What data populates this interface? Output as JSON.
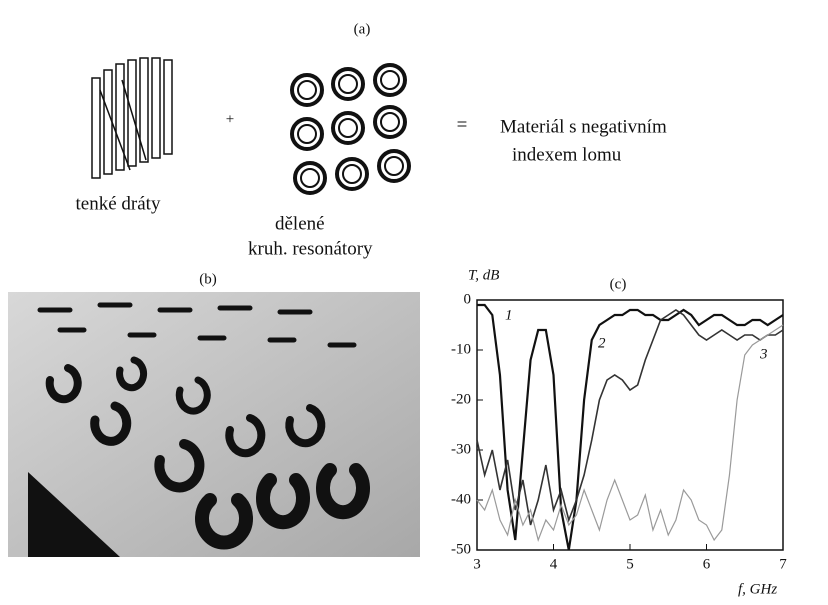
{
  "figure": {
    "panel_a_label": "(a)",
    "wires_label": "tenké dráty",
    "plus": "+",
    "resonators_label": [
      "dělené",
      "kruh. resonátory"
    ],
    "equals": "=",
    "result_label": [
      "Materiál  s negativním",
      "indexem lomu"
    ],
    "panel_b_label": "(b)"
  },
  "chart_data": {
    "type": "line",
    "title": "(c)",
    "y_label": "T, dB",
    "x_label": "f, GHz",
    "x": [
      3,
      3.1,
      3.2,
      3.3,
      3.4,
      3.5,
      3.6,
      3.7,
      3.8,
      3.9,
      4,
      4.1,
      4.2,
      4.3,
      4.4,
      4.5,
      4.6,
      4.7,
      4.8,
      4.9,
      5,
      5.1,
      5.2,
      5.3,
      5.4,
      5.5,
      5.6,
      5.7,
      5.8,
      5.9,
      6,
      6.1,
      6.2,
      6.3,
      6.4,
      6.5,
      6.6,
      6.7,
      6.8,
      6.9,
      7
    ],
    "series": [
      {
        "name": "1",
        "color": "#111111",
        "values": [
          -1,
          -1,
          -3,
          -15,
          -38,
          -48,
          -30,
          -12,
          -6,
          -6,
          -15,
          -42,
          -50,
          -40,
          -20,
          -8,
          -5,
          -4,
          -3,
          -3,
          -2,
          -2,
          -3,
          -3,
          -4,
          -4,
          -3,
          -2,
          -3,
          -5,
          -4,
          -3,
          -3,
          -4,
          -5,
          -5,
          -4,
          -4,
          -5,
          -4,
          -3
        ]
      },
      {
        "name": "2",
        "color": "#333333",
        "values": [
          -28,
          -35,
          -30,
          -38,
          -32,
          -42,
          -36,
          -45,
          -40,
          -33,
          -42,
          -38,
          -44,
          -40,
          -35,
          -28,
          -20,
          -16,
          -15,
          -16,
          -18,
          -17,
          -12,
          -8,
          -4,
          -3,
          -2,
          -3,
          -5,
          -7,
          -8,
          -7,
          -6,
          -7,
          -8,
          -7,
          -7,
          -8,
          -7,
          -7,
          -6
        ]
      },
      {
        "name": "3",
        "color": "#9a9a9a",
        "values": [
          -40,
          -42,
          -38,
          -44,
          -47,
          -40,
          -45,
          -42,
          -48,
          -44,
          -46,
          -41,
          -45,
          -43,
          -38,
          -42,
          -46,
          -40,
          -36,
          -40,
          -44,
          -43,
          -39,
          -46,
          -42,
          -47,
          -44,
          -38,
          -40,
          -44,
          -45,
          -48,
          -46,
          -35,
          -20,
          -11,
          -9,
          -8,
          -7,
          -6,
          -5
        ]
      }
    ],
    "xlim": [
      3,
      7
    ],
    "xticks": [
      3,
      4,
      5,
      6,
      7
    ],
    "ylim": [
      -50,
      0
    ],
    "yticks": [
      0,
      -10,
      -20,
      -30,
      -40,
      -50
    ]
  }
}
